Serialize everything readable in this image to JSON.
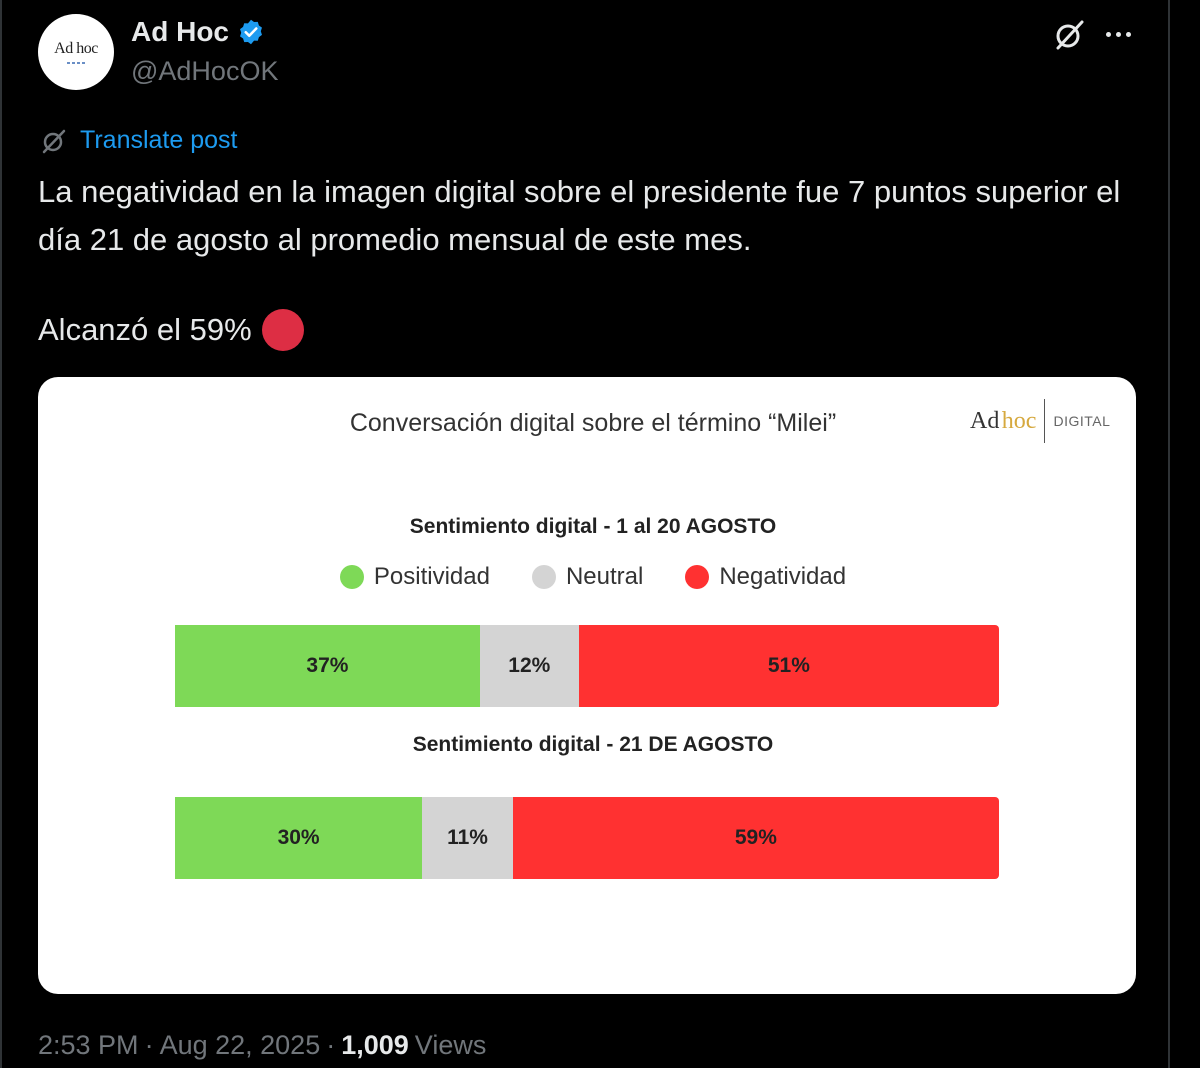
{
  "account": {
    "avatar_text": "Ad hoc",
    "display_name": "Ad Hoc",
    "handle": "@AdHocOK",
    "verified_color": "#1d9bf0"
  },
  "actions": {
    "grok_icon": "grok-icon",
    "more_icon": "more-icon"
  },
  "translate": {
    "label": "Translate post",
    "icon": "translate-icon"
  },
  "post": {
    "text": "La negatividad en la imagen digital sobre el presidente fue 7 puntos superior el día 21 de agosto al promedio mensual de este mes.",
    "line2": "Alcanzó el 59%",
    "emoji_color": "#dd2e44"
  },
  "card": {
    "title": "Conversación digital sobre el término “Milei”",
    "brand": {
      "ad": "Ad",
      "hoc": "hoc",
      "digital": "DIGITAL"
    }
  },
  "chart_data": [
    {
      "type": "bar",
      "stacked": true,
      "orientation": "horizontal",
      "title": "Sentimiento digital - 1 al 20 AGOSTO",
      "legend_placement": "top",
      "series": [
        {
          "name": "Positividad",
          "values": [
            37
          ],
          "label": "37%",
          "color": "#7ed957"
        },
        {
          "name": "Neutral",
          "values": [
            12
          ],
          "label": "12%",
          "color": "#d4d4d4"
        },
        {
          "name": "Negatividad",
          "values": [
            51
          ],
          "label": "51%",
          "color": "#ff3131"
        }
      ],
      "xlim": [
        0,
        100
      ]
    },
    {
      "type": "bar",
      "stacked": true,
      "orientation": "horizontal",
      "title": "Sentimiento digital - 21 DE AGOSTO",
      "series": [
        {
          "name": "Positividad",
          "values": [
            30
          ],
          "label": "30%",
          "color": "#7ed957"
        },
        {
          "name": "Neutral",
          "values": [
            11
          ],
          "label": "11%",
          "color": "#d4d4d4"
        },
        {
          "name": "Negatividad",
          "values": [
            59
          ],
          "label": "59%",
          "color": "#ff3131"
        }
      ],
      "xlim": [
        0,
        100
      ]
    }
  ],
  "legend": [
    {
      "label": "Positividad",
      "color": "#7ed957"
    },
    {
      "label": "Neutral",
      "color": "#d4d4d4"
    },
    {
      "label": "Negatividad",
      "color": "#ff3131"
    }
  ],
  "footer": {
    "time": "2:53 PM",
    "separator": "·",
    "date": "Aug 22, 2025",
    "views_count": "1,009",
    "views_label": "Views"
  }
}
